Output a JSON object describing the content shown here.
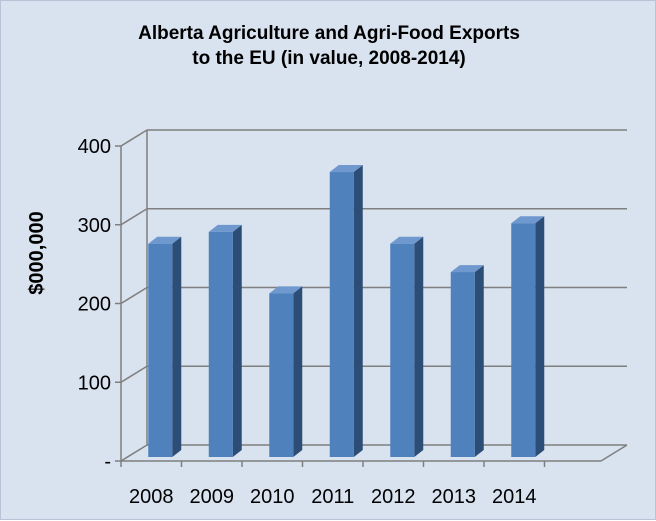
{
  "chart_data": {
    "type": "bar",
    "title": [
      "Alberta Agriculture and Agri-Food Exports",
      "to the EU (in value, 2008-2014)"
    ],
    "xlabel": "",
    "ylabel": "$000,000",
    "categories": [
      "2008",
      "2009",
      "2010",
      "2011",
      "2012",
      "2013",
      "2014"
    ],
    "values": [
      281,
      296,
      218,
      372,
      281,
      245,
      307
    ],
    "ylim": [
      0,
      400
    ],
    "yticks": [
      {
        "value": 0,
        "label": "-"
      },
      {
        "value": 100,
        "label": "100"
      },
      {
        "value": 200,
        "label": "200"
      },
      {
        "value": 300,
        "label": "300"
      },
      {
        "value": 400,
        "label": "400"
      }
    ],
    "grid": true,
    "legend": "none",
    "style": "3d-column",
    "colors": {
      "background": "#d9e2ef",
      "bar_front": "#4f81bd",
      "bar_side": "#2c4d75",
      "bar_top": "#6f98ce",
      "grid": "#7f7f7f"
    }
  }
}
